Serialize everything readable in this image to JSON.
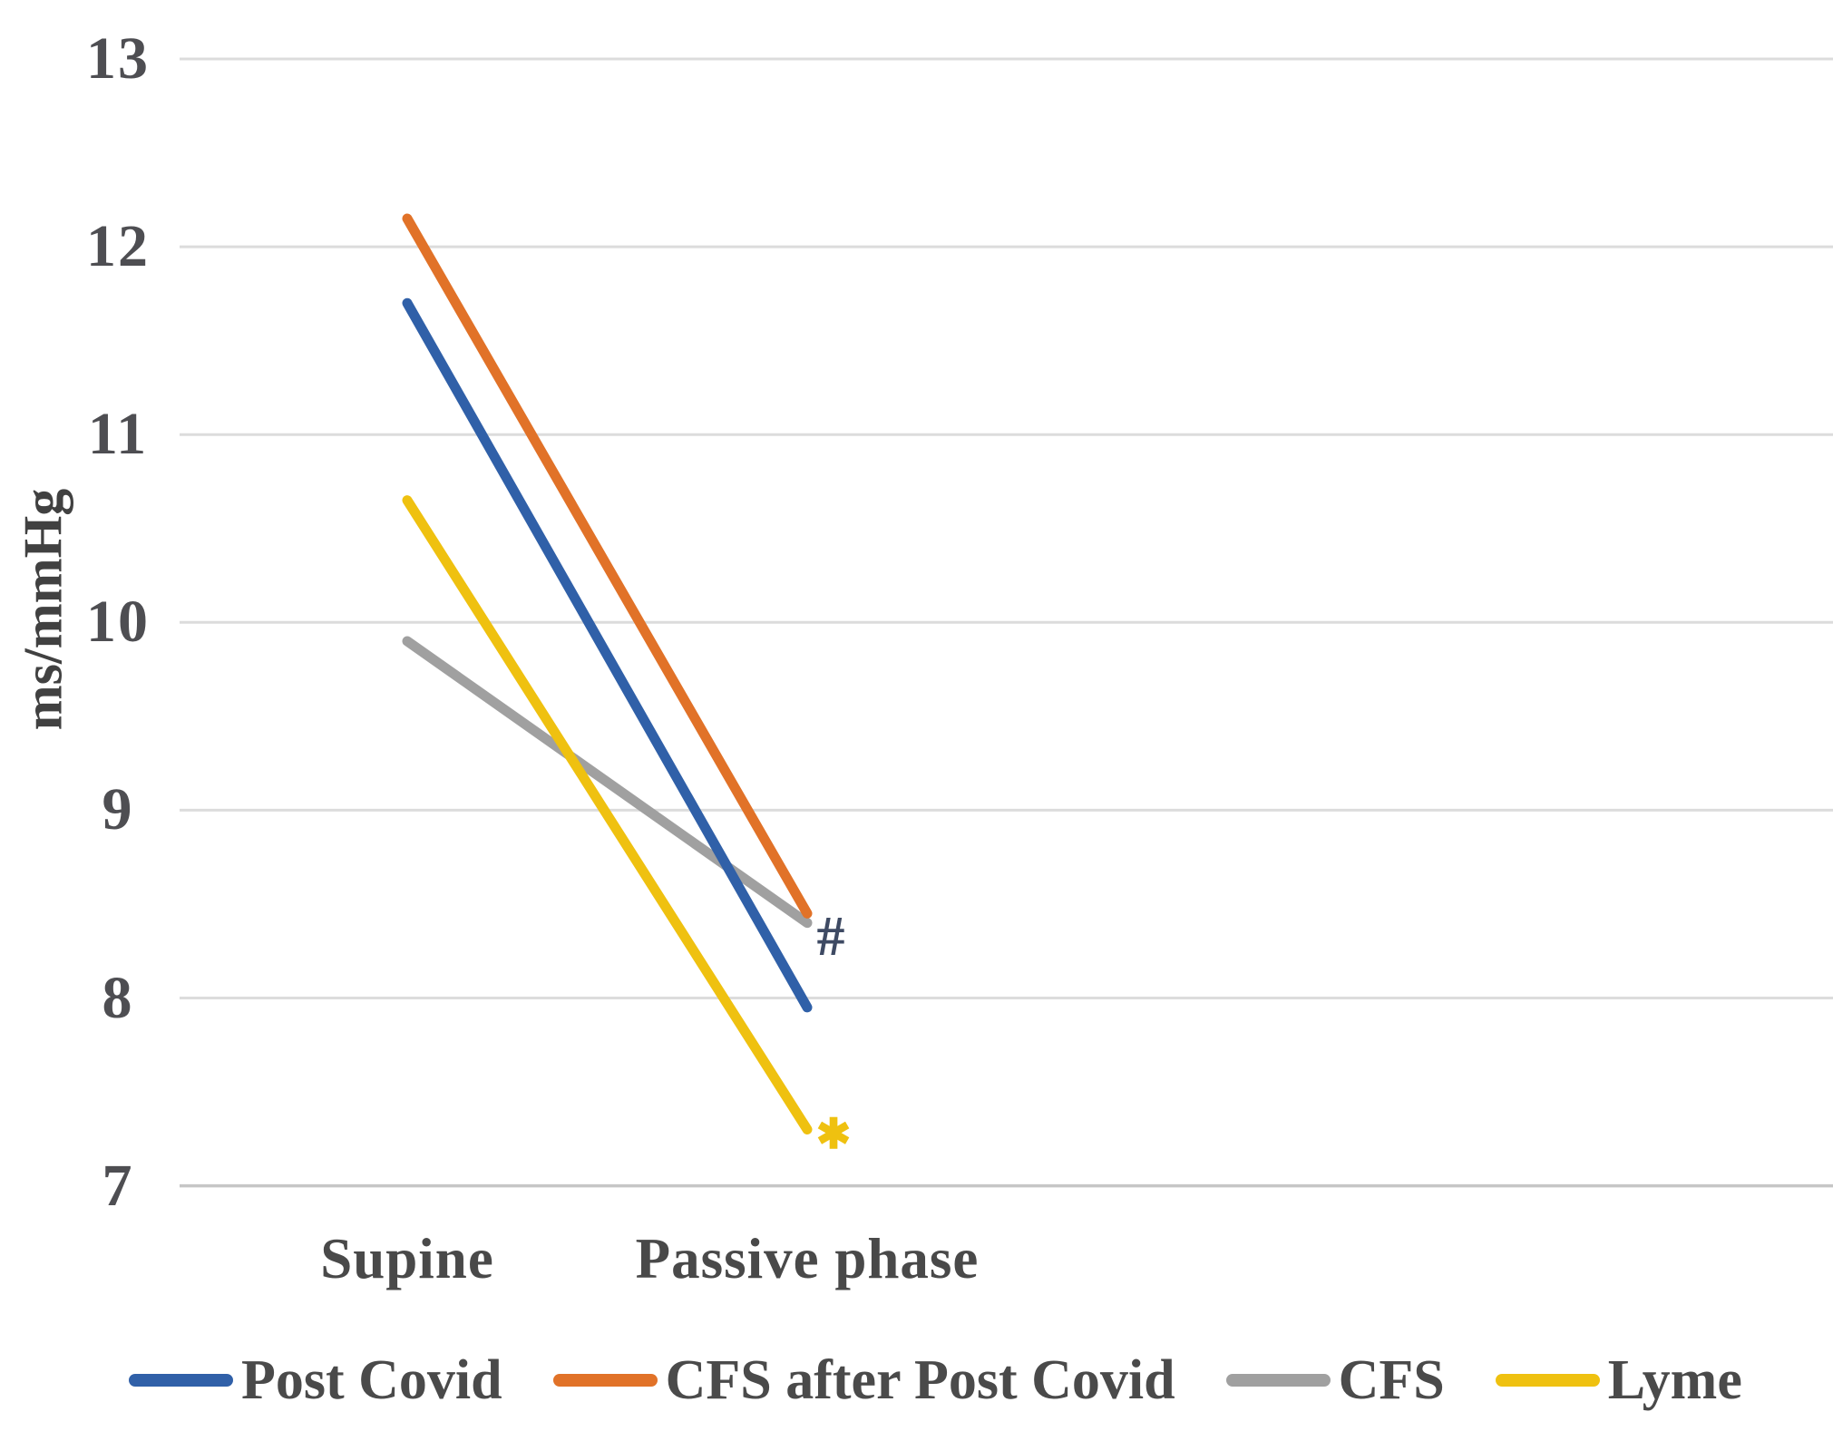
{
  "figure": {
    "background": "#ffffff"
  },
  "chart_data": {
    "type": "line",
    "title": "",
    "xlabel": "",
    "ylabel": "ms/mmHg",
    "categories": [
      "Supine",
      "Passive phase"
    ],
    "series": [
      {
        "name": "Post Covid",
        "color": "#3060A8",
        "values": [
          11.7,
          7.95
        ]
      },
      {
        "name": "CFS after Post Covid",
        "color": "#E17228",
        "values": [
          12.15,
          8.45
        ]
      },
      {
        "name": "CFS",
        "color": "#A0A0A0",
        "values": [
          9.9,
          8.4
        ]
      },
      {
        "name": "Lyme",
        "color": "#EFC110",
        "values": [
          10.65,
          7.3
        ]
      }
    ],
    "ylim": [
      7,
      13
    ],
    "yticks": [
      13,
      12,
      11,
      10,
      9,
      8,
      7
    ],
    "grid": true,
    "gridline_color": "#DCDCDC",
    "axis_line_color": "#C6C6C6",
    "legend_position": "bottom",
    "text_color": "#4A4A4A",
    "annotations": [
      {
        "text": "#",
        "color": "#3E4A63",
        "attached_to_series": "CFS after Post Covid",
        "at_category": "Passive phase"
      },
      {
        "text": "✱",
        "color": "#EFC110",
        "attached_to_series": "Lyme",
        "at_category": "Passive phase"
      }
    ]
  }
}
